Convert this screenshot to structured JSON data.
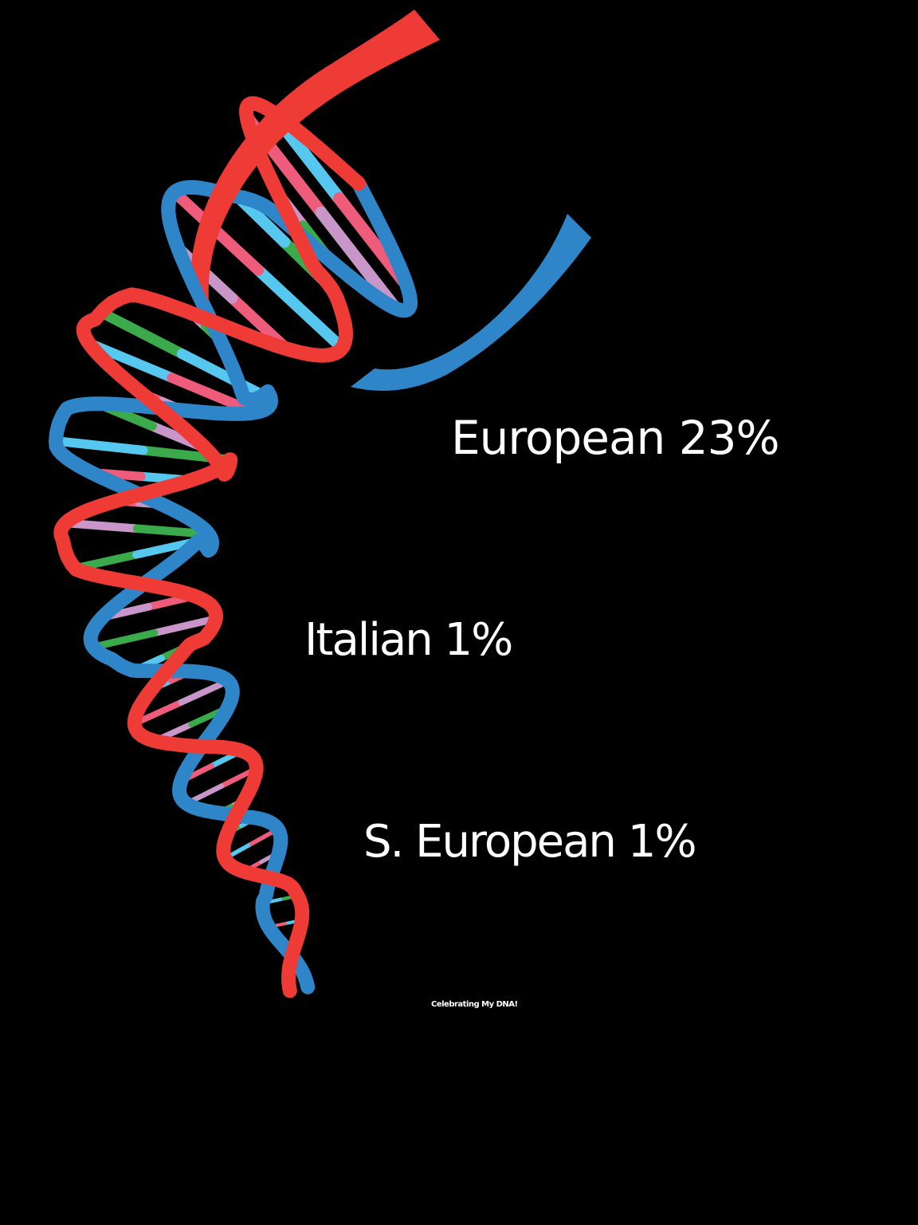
{
  "labels": {
    "european": "European 23%",
    "italian": "Italian 1%",
    "s_european": "S. European 1%"
  },
  "footer": "Celebrating My DNA!",
  "colors": {
    "background": "#000000",
    "strand_red": "#ef3b36",
    "strand_blue": "#2e86c9",
    "rung_cyan": "#56c8f0",
    "rung_pink": "#ef5b7b",
    "rung_lilac": "#c896c8",
    "rung_green": "#3aaa4a"
  },
  "icons": [
    "dna-helix-icon"
  ]
}
